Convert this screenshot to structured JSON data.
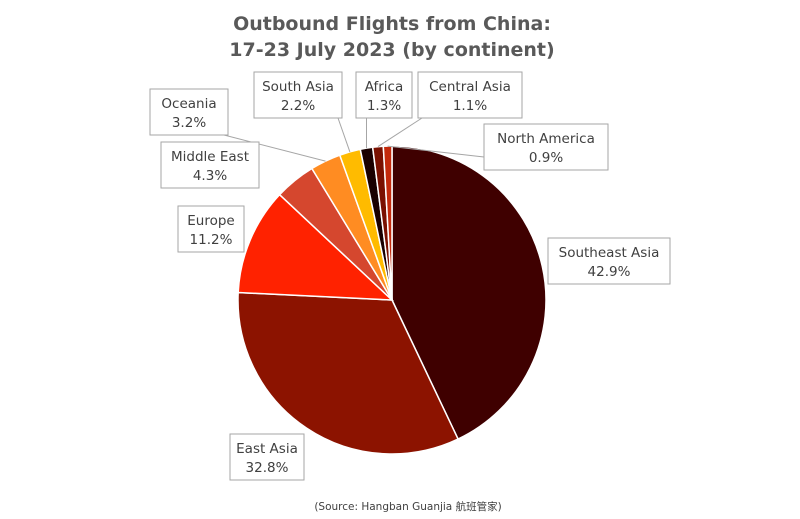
{
  "chart_data": {
    "type": "pie",
    "title_lines": [
      "Outbound Flights from China:",
      "17-23 July 2023 (by continent)"
    ],
    "source": "(Source: Hangban Guanjia 航班管家)",
    "slices": [
      {
        "label": "Southeast Asia",
        "value": 42.9,
        "value_label": "42.9%",
        "color": "#3f0000"
      },
      {
        "label": "East Asia",
        "value": 32.8,
        "value_label": "32.8%",
        "color": "#8c1300"
      },
      {
        "label": "Europe",
        "value": 11.2,
        "value_label": "11.2%",
        "color": "#ff2200"
      },
      {
        "label": "Middle East",
        "value": 4.3,
        "value_label": "4.3%",
        "color": "#d5472e"
      },
      {
        "label": "Oceania",
        "value": 3.2,
        "value_label": "3.2%",
        "color": "#ff8c22"
      },
      {
        "label": "South Asia",
        "value": 2.2,
        "value_label": "2.2%",
        "color": "#ffbb00"
      },
      {
        "label": "Africa",
        "value": 1.3,
        "value_label": "1.3%",
        "color": "#1a0000"
      },
      {
        "label": "Central Asia",
        "value": 1.1,
        "value_label": "1.1%",
        "color": "#7a1000"
      },
      {
        "label": "North America",
        "value": 0.9,
        "value_label": "0.9%",
        "color": "#c42a0c"
      }
    ]
  }
}
